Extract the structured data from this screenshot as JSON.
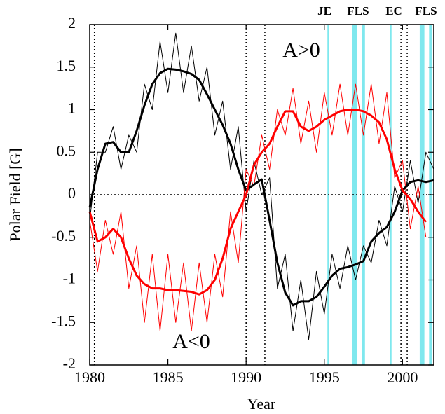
{
  "chart_data": {
    "type": "line",
    "xlabel": "Year",
    "ylabel": "Polar Field [G]",
    "xlim": [
      1980,
      2002
    ],
    "ylim": [
      -2,
      2
    ],
    "xticks": [
      1980,
      1985,
      1990,
      1995,
      2000
    ],
    "yticks": [
      2,
      1.5,
      1,
      0.5,
      0,
      -0.5,
      -1,
      -1.5,
      -2
    ],
    "y_reference_lines": [
      0
    ],
    "vlines": [
      1980.3,
      1990,
      1991.2,
      1999.9,
      2000.3
    ],
    "shaded_intervals": [
      [
        1995.2,
        1995.3
      ],
      [
        1996.8,
        1997.1
      ],
      [
        1997.4,
        1997.6
      ],
      [
        1999.2,
        1999.3
      ],
      [
        2001.1,
        2001.4
      ],
      [
        2001.7,
        2001.9
      ]
    ],
    "shade_color": "#7fe8ee",
    "band_labels": [
      "JE",
      "FLS",
      "EC",
      "FLS"
    ],
    "annotations": [
      "A>0",
      "A<0"
    ],
    "x": [
      1980,
      1980.5,
      1981,
      1981.5,
      1982,
      1982.5,
      1983,
      1983.5,
      1984,
      1984.5,
      1985,
      1985.5,
      1986,
      1986.5,
      1987,
      1987.5,
      1988,
      1988.5,
      1989,
      1989.5,
      1990,
      1990.5,
      1991,
      1991.5,
      1992,
      1992.5,
      1993,
      1993.5,
      1994,
      1994.5,
      1995,
      1995.5,
      1996,
      1996.5,
      1997,
      1997.5,
      1998,
      1998.5,
      1999,
      1999.5,
      2000,
      2000.5,
      2001,
      2001.5,
      2002
    ],
    "series": [
      {
        "color": "#000000",
        "width": 1,
        "values": [
          -0.3,
          0.5,
          0.5,
          0.8,
          0.3,
          0.7,
          0.5,
          1.3,
          1.0,
          1.8,
          1.2,
          1.9,
          1.2,
          1.75,
          1.1,
          1.5,
          0.7,
          1.1,
          0.3,
          0.8,
          -0.2,
          0.4,
          0.0,
          0.2,
          -1.1,
          -0.7,
          -1.6,
          -1.0,
          -1.7,
          -0.9,
          -1.4,
          -0.7,
          -1.1,
          -0.6,
          -1.0,
          -0.6,
          -0.8,
          -0.3,
          -0.6,
          0.1,
          -0.2,
          0.4,
          -0.1,
          0.5,
          0.3
        ]
      },
      {
        "color": "#ff0000",
        "width": 1,
        "values": [
          -0.3,
          -0.9,
          -0.3,
          -0.7,
          -0.2,
          -1.1,
          -0.6,
          -1.5,
          -0.7,
          -1.6,
          -0.7,
          -1.5,
          -0.8,
          -1.6,
          -0.8,
          -1.5,
          -0.7,
          -1.2,
          -0.2,
          -0.8,
          0.3,
          0.1,
          0.7,
          0.3,
          1.0,
          0.7,
          1.25,
          0.6,
          1.1,
          0.5,
          1.2,
          0.7,
          1.3,
          0.7,
          1.3,
          0.7,
          1.3,
          0.6,
          1.2,
          0.2,
          0.4,
          -0.4,
          0.1,
          -0.5,
          null
        ]
      },
      {
        "color": "#000000",
        "width": 3,
        "values": [
          -0.15,
          0.3,
          0.6,
          0.62,
          0.5,
          0.5,
          0.75,
          1.05,
          1.3,
          1.43,
          1.48,
          1.47,
          1.45,
          1.42,
          1.35,
          1.18,
          1.0,
          0.82,
          0.6,
          0.3,
          0.05,
          0.12,
          0.18,
          -0.3,
          -0.8,
          -1.15,
          -1.3,
          -1.25,
          -1.25,
          -1.2,
          -1.08,
          -0.95,
          -0.87,
          -0.85,
          -0.82,
          -0.78,
          -0.55,
          -0.45,
          -0.38,
          -0.2,
          0.05,
          0.15,
          0.17,
          0.15,
          0.17
        ]
      },
      {
        "color": "#ff0000",
        "width": 3,
        "values": [
          -0.2,
          -0.55,
          -0.5,
          -0.4,
          -0.5,
          -0.75,
          -0.95,
          -1.05,
          -1.1,
          -1.1,
          -1.12,
          -1.12,
          -1.13,
          -1.14,
          -1.17,
          -1.12,
          -1.0,
          -0.75,
          -0.4,
          -0.2,
          0.0,
          0.35,
          0.5,
          0.6,
          0.8,
          0.98,
          0.98,
          0.8,
          0.75,
          0.8,
          0.88,
          0.93,
          0.98,
          1.0,
          1.0,
          0.98,
          0.93,
          0.85,
          0.65,
          0.3,
          0.05,
          -0.05,
          -0.2,
          -0.32,
          null
        ]
      }
    ]
  }
}
